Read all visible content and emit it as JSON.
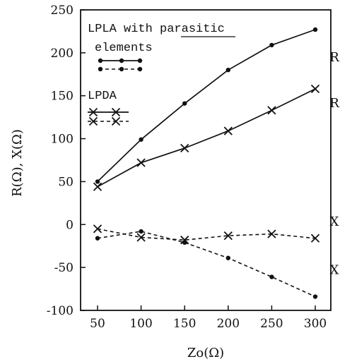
{
  "chart_data": {
    "type": "line",
    "xlabel": "Zo(Ω)",
    "ylabel": "R(Ω), X(Ω)",
    "x": [
      50,
      100,
      150,
      200,
      250,
      300
    ],
    "xlim": [
      50,
      300
    ],
    "ylim": [
      -100,
      250
    ],
    "xticks": [
      "50",
      "100",
      "150",
      "200",
      "250",
      "300"
    ],
    "yticks": [
      "250",
      "200",
      "150",
      "100",
      "50",
      "0",
      "-50",
      "-100"
    ],
    "grid": false,
    "legend": {
      "placement": "top-left",
      "entries": [
        {
          "label": "LPLA with parasitic elements",
          "marker": "dot"
        },
        {
          "label": "LPDA",
          "marker": "x"
        }
      ]
    },
    "series": [
      {
        "name": "LPLA with parasitic elements",
        "label": "R",
        "quantity": "R",
        "marker": "dot",
        "style": "solid",
        "values": [
          50,
          99,
          141,
          180,
          209,
          227
        ]
      },
      {
        "name": "LPDA",
        "label": "R",
        "quantity": "R",
        "marker": "x",
        "style": "solid",
        "values": [
          44,
          72,
          89,
          109,
          133,
          158
        ]
      },
      {
        "name": "LPDA",
        "label": "X",
        "quantity": "X",
        "marker": "x",
        "style": "dashed",
        "values": [
          -5,
          -15,
          -18,
          -13,
          -11,
          -16
        ]
      },
      {
        "name": "LPLA with parasitic elements",
        "label": "X",
        "quantity": "X",
        "marker": "dot",
        "style": "dashed",
        "values": [
          -16,
          -8,
          -21,
          -39,
          -61,
          -84
        ]
      }
    ]
  }
}
